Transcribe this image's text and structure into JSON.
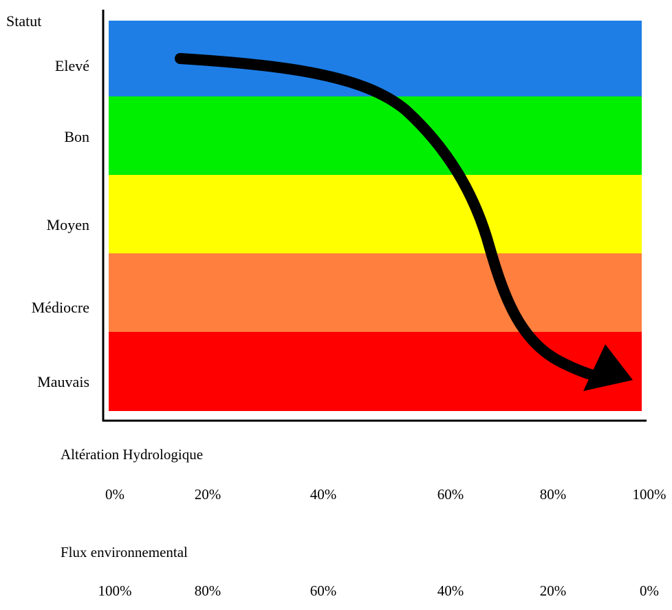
{
  "y_axis": {
    "title": "Statut",
    "levels": [
      {
        "label": "Elevé",
        "color": "#1e7ee6"
      },
      {
        "label": "Bon",
        "color": "#00ee00"
      },
      {
        "label": "Moyen",
        "color": "#ffff00"
      },
      {
        "label": "Médiocre",
        "color": "#ff7f3f"
      },
      {
        "label": "Mauvais",
        "color": "#ff0000"
      }
    ]
  },
  "scales": [
    {
      "title": "Altération Hydrologique",
      "ticks": [
        "0%",
        "20%",
        "40%",
        "60%",
        "80%",
        "100%"
      ]
    },
    {
      "title": "Flux environnemental",
      "ticks": [
        "100%",
        "80%",
        "60%",
        "40%",
        "20%",
        "0%"
      ]
    }
  ],
  "arrow": {
    "color": "#000000",
    "direction": "declining from Elevé to Mauvais as alteration increases"
  }
}
